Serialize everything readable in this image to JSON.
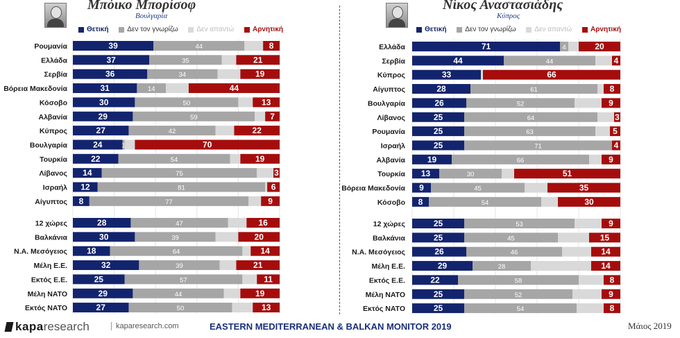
{
  "legend": {
    "positive": "Θετική",
    "unknown": "Δεν τον γνωρίζω",
    "no_answer": "Δεν απαντώ",
    "negative": "Αρνητική"
  },
  "colors": {
    "positive": "#13246e",
    "unknown": "#a6a6a6",
    "no_answer": "#d9d9d9",
    "negative": "#a50d0d"
  },
  "footer": {
    "brand_kapa": "kapa",
    "brand_research": "research",
    "url": "kaparesearch.com",
    "title": "EASTERN MEDITERRANEAN & BALKAN MONITOR 2019",
    "date": "Μάιος 2019"
  },
  "chart_data": [
    {
      "type": "bar",
      "stacked": true,
      "orientation": "horizontal",
      "title": "Μπόικο Μπορίσοφ",
      "subtitle": "Βουλγαρία",
      "xlim": [
        0,
        100
      ],
      "series_names": [
        "Θετική",
        "Δεν τον γνωρίζω",
        "Δεν απαντώ",
        "Αρνητική"
      ],
      "groups": [
        {
          "rows": [
            {
              "label": "Ρουμανία",
              "values": [
                39,
                44,
                null,
                8
              ]
            },
            {
              "label": "Ελλάδα",
              "values": [
                37,
                35,
                null,
                21
              ]
            },
            {
              "label": "Σερβία",
              "values": [
                36,
                34,
                null,
                19
              ]
            },
            {
              "label": "Βόρεια Μακεδονία",
              "values": [
                31,
                14,
                null,
                44
              ]
            },
            {
              "label": "Κόσοβο",
              "values": [
                30,
                50,
                null,
                13
              ]
            },
            {
              "label": "Αλβανία",
              "values": [
                29,
                59,
                null,
                7
              ]
            },
            {
              "label": "Κύπρος",
              "values": [
                27,
                42,
                null,
                22
              ]
            },
            {
              "label": "Βουλγαρία",
              "values": [
                24,
                1,
                null,
                70
              ]
            },
            {
              "label": "Τουρκία",
              "values": [
                22,
                54,
                null,
                19
              ]
            },
            {
              "label": "Λίβανος",
              "values": [
                14,
                75,
                null,
                3
              ]
            },
            {
              "label": "Ισραήλ",
              "values": [
                12,
                81,
                null,
                6
              ]
            },
            {
              "label": "Αίγυπτος",
              "values": [
                8,
                77,
                null,
                9
              ]
            }
          ]
        },
        {
          "rows": [
            {
              "label": "12 χώρες",
              "values": [
                28,
                47,
                null,
                16
              ]
            },
            {
              "label": "Βαλκάνια",
              "values": [
                30,
                39,
                null,
                20
              ]
            },
            {
              "label": "Ν.Α. Μεσόγειος",
              "values": [
                18,
                64,
                null,
                14
              ]
            },
            {
              "label": "Μέλη Ε.Ε.",
              "values": [
                32,
                39,
                null,
                21
              ]
            },
            {
              "label": "Εκτός Ε.Ε.",
              "values": [
                25,
                57,
                null,
                11
              ]
            },
            {
              "label": "Μέλη ΝΑΤΟ",
              "values": [
                29,
                44,
                null,
                19
              ]
            },
            {
              "label": "Εκτός ΝΑΤΟ",
              "values": [
                27,
                50,
                null,
                13
              ]
            }
          ]
        }
      ]
    },
    {
      "type": "bar",
      "stacked": true,
      "orientation": "horizontal",
      "title": "Νίκος Αναστασιάδης",
      "subtitle": "Κύπρος",
      "xlim": [
        0,
        100
      ],
      "series_names": [
        "Θετική",
        "Δεν τον γνωρίζω",
        "Δεν απαντώ",
        "Αρνητική"
      ],
      "groups": [
        {
          "rows": [
            {
              "label": "Ελλάδα",
              "values": [
                71,
                4,
                null,
                20
              ]
            },
            {
              "label": "Σερβία",
              "values": [
                44,
                44,
                null,
                4
              ]
            },
            {
              "label": "Κύπρος",
              "values": [
                33,
                null,
                null,
                66
              ]
            },
            {
              "label": "Αίγυπτος",
              "values": [
                28,
                61,
                null,
                8
              ]
            },
            {
              "label": "Βουλγαρία",
              "values": [
                26,
                52,
                null,
                9
              ]
            },
            {
              "label": "Λίβανος",
              "values": [
                25,
                64,
                null,
                3
              ]
            },
            {
              "label": "Ρουμανία",
              "values": [
                25,
                63,
                null,
                5
              ]
            },
            {
              "label": "Ισραήλ",
              "values": [
                25,
                71,
                null,
                4
              ]
            },
            {
              "label": "Αλβανία",
              "values": [
                19,
                66,
                null,
                9
              ]
            },
            {
              "label": "Τουρκία",
              "values": [
                13,
                30,
                null,
                51
              ]
            },
            {
              "label": "Βόρεια Μακεδονία",
              "values": [
                9,
                45,
                null,
                35
              ]
            },
            {
              "label": "Κόσοβο",
              "values": [
                8,
                54,
                null,
                30
              ]
            }
          ]
        },
        {
          "rows": [
            {
              "label": "12 χώρες",
              "values": [
                25,
                53,
                null,
                9
              ]
            },
            {
              "label": "Βαλκάνια",
              "values": [
                25,
                45,
                null,
                15
              ]
            },
            {
              "label": "Ν.Α. Μεσόγειος",
              "values": [
                26,
                46,
                null,
                14
              ]
            },
            {
              "label": "Μέλη Ε.Ε.",
              "values": [
                29,
                28,
                null,
                14
              ]
            },
            {
              "label": "Εκτός Ε.Ε.",
              "values": [
                22,
                58,
                null,
                8
              ]
            },
            {
              "label": "Μέλη ΝΑΤΟ",
              "values": [
                25,
                52,
                null,
                9
              ]
            },
            {
              "label": "Εκτός ΝΑΤΟ",
              "values": [
                25,
                54,
                null,
                8
              ]
            }
          ]
        }
      ]
    }
  ]
}
